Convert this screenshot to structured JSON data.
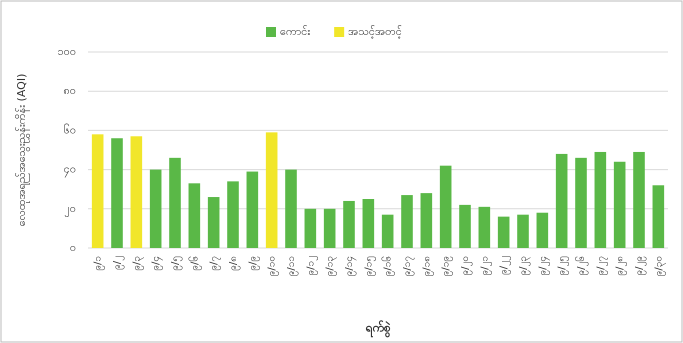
{
  "chart_data": {
    "type": "bar",
    "y_label": "လေထုအရည်အသွေးညွှန်းကိန်း (AQI)",
    "x_label": "ရက်စွဲ",
    "categories": [
      "၉/၁",
      "၉/၂",
      "၉/၃",
      "၉/၄",
      "၉/၅",
      "၉/၆",
      "၉/၇",
      "၉/၈",
      "၉/၉",
      "၉/၁၀",
      "၉/၁၁",
      "၉/၁၂",
      "၉/၁၃",
      "၉/၁၄",
      "၉/၁၅",
      "၉/၁၆",
      "၉/၁၇",
      "၉/၁၈",
      "၉/၁၉",
      "၉/၂၀",
      "၉/၂၁",
      "၉/၂၂",
      "၉/၂၃",
      "၉/၂၄",
      "၉/၂၅",
      "၉/၂၆",
      "၉/၂၇",
      "၉/၂၈",
      "၉/၂၉",
      "၉/၃၀"
    ],
    "series": [
      {
        "name": "ကောင်း",
        "color": "#5ab847",
        "values": [
          null,
          56,
          null,
          40,
          46,
          33,
          26,
          34,
          39,
          null,
          40,
          20,
          20,
          24,
          25,
          17,
          27,
          28,
          42,
          22,
          21,
          16,
          17,
          18,
          48,
          46,
          49,
          44,
          49,
          32
        ]
      },
      {
        "name": "အသင့်အတင့်",
        "color": "#f1e62a",
        "values": [
          58,
          null,
          57,
          null,
          null,
          null,
          null,
          null,
          null,
          59,
          null,
          null,
          null,
          null,
          null,
          null,
          null,
          null,
          null,
          null,
          null,
          null,
          null,
          null,
          null,
          null,
          null,
          null,
          null,
          null
        ]
      }
    ],
    "ylim": [
      0,
      100
    ],
    "yticks": [
      {
        "value": 0,
        "label": "၀"
      },
      {
        "value": 20,
        "label": "၂၀"
      },
      {
        "value": 40,
        "label": "၄၀"
      },
      {
        "value": 60,
        "label": "၆၀"
      },
      {
        "value": 80,
        "label": "၈၀"
      },
      {
        "value": 100,
        "label": "၁၀၀"
      }
    ],
    "grid": true,
    "legend": "top"
  }
}
